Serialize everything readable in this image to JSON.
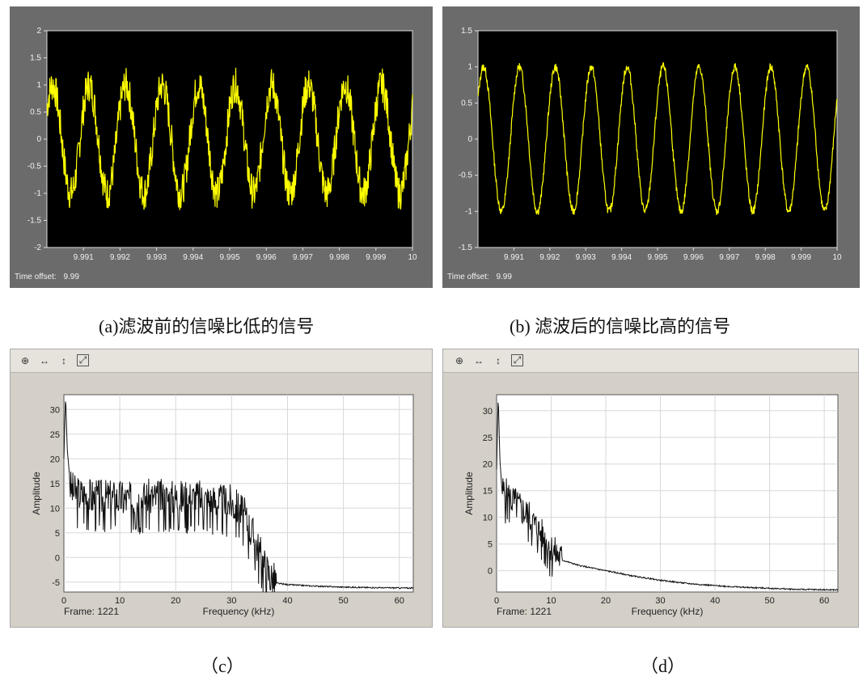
{
  "captions": {
    "a": "(a)滤波前的信噪比低的信号",
    "b": "(b)  滤波后的信噪比高的信号",
    "c": "（c）",
    "d": "（d）"
  },
  "toolbar_icons": [
    "zoom-in-icon",
    "zoom-x-icon",
    "zoom-y-icon",
    "fit-view-icon"
  ],
  "chart_data": [
    {
      "type": "line",
      "id": "a",
      "title": "",
      "xlabel": "",
      "ylabel": "",
      "time_offset_label": "Time offset:",
      "time_offset_value": "9.99",
      "xlim": [
        9.99,
        10.0
      ],
      "ylim": [
        -2,
        2
      ],
      "xticks": [
        9.991,
        9.992,
        9.993,
        9.994,
        9.995,
        9.996,
        9.997,
        9.998,
        9.999,
        10
      ],
      "xtick_labels": [
        "9.991",
        "9.992",
        "9.993",
        "9.994",
        "9.995",
        "9.996",
        "9.997",
        "9.998",
        "9.999",
        "10"
      ],
      "yticks": [
        -2,
        -1.5,
        -1,
        -0.5,
        0,
        0.5,
        1,
        1.5,
        2
      ],
      "ytick_labels": [
        "-2",
        "-1.5",
        "-1",
        "-0.5",
        "0",
        "0.5",
        "1",
        "1.5",
        "2"
      ],
      "signal": {
        "amplitude": 1.0,
        "cycles": 10,
        "noise": 0.32,
        "color": "#ffff00"
      },
      "background": "#000000",
      "grid": false
    },
    {
      "type": "line",
      "id": "b",
      "title": "",
      "xlabel": "",
      "ylabel": "",
      "time_offset_label": "Time offset:",
      "time_offset_value": "9.99",
      "xlim": [
        9.99,
        10.0
      ],
      "ylim": [
        -1.5,
        1.5
      ],
      "xticks": [
        9.991,
        9.992,
        9.993,
        9.994,
        9.995,
        9.996,
        9.997,
        9.998,
        9.999,
        10
      ],
      "xtick_labels": [
        "9.991",
        "9.992",
        "9.993",
        "9.994",
        "9.995",
        "9.996",
        "9.997",
        "9.998",
        "9.999",
        "10"
      ],
      "yticks": [
        -1.5,
        -1,
        -0.5,
        0,
        0.5,
        1,
        1.5
      ],
      "ytick_labels": [
        "-1.5",
        "-1",
        "-0.5",
        "0",
        "0.5",
        "1",
        "1.5"
      ],
      "signal": {
        "amplitude": 1.0,
        "cycles": 10,
        "noise": 0.06,
        "color": "#ffff00"
      },
      "background": "#000000",
      "grid": false
    },
    {
      "type": "line",
      "id": "c",
      "title": "",
      "xlabel": "Frequency (kHz)",
      "ylabel": "Amplitude",
      "frame_label": "Frame: 1221",
      "xlim": [
        0,
        62.5
      ],
      "ylim": [
        -7,
        33
      ],
      "xticks": [
        0,
        10,
        20,
        30,
        40,
        50,
        60
      ],
      "xtick_labels": [
        "0",
        "10",
        "20",
        "30",
        "40",
        "50",
        "60"
      ],
      "yticks": [
        -5,
        0,
        5,
        10,
        15,
        20,
        25,
        30
      ],
      "ytick_labels": [
        "-5",
        "0",
        "5",
        "10",
        "15",
        "20",
        "25",
        "30"
      ],
      "grid": true,
      "series": [
        {
          "x": [
            0,
            0.3,
            0.6,
            1.2,
            2,
            4,
            6,
            8,
            10,
            12,
            14,
            16,
            18,
            20,
            22,
            24,
            26,
            28,
            30,
            32,
            34,
            35,
            36,
            37,
            38,
            40,
            45,
            50,
            55,
            62.5
          ],
          "y": [
            20,
            33,
            22,
            14,
            13,
            12.5,
            12,
            12,
            12,
            11.5,
            12,
            12,
            12,
            12,
            12,
            12,
            11.5,
            11,
            11,
            9,
            4,
            1,
            -2,
            -4,
            -5.2,
            -5.5,
            -5.8,
            -6,
            -6.1,
            -6.2
          ]
        }
      ],
      "noise_band": {
        "x_start": 1,
        "x_end": 38,
        "spread": 5
      }
    },
    {
      "type": "line",
      "id": "d",
      "title": "",
      "xlabel": "Frequency (kHz)",
      "ylabel": "Amplitude",
      "frame_label": "Frame: 1221",
      "xlim": [
        0,
        62.5
      ],
      "ylim": [
        -4,
        33
      ],
      "xticks": [
        0,
        10,
        20,
        30,
        40,
        50,
        60
      ],
      "xtick_labels": [
        "0",
        "10",
        "20",
        "30",
        "40",
        "50",
        "60"
      ],
      "yticks": [
        0,
        5,
        10,
        15,
        20,
        25,
        30
      ],
      "ytick_labels": [
        "0",
        "5",
        "10",
        "15",
        "20",
        "25",
        "30"
      ],
      "grid": true,
      "series": [
        {
          "x": [
            0,
            0.3,
            0.6,
            1,
            2,
            4,
            6,
            8,
            10,
            12,
            15,
            20,
            25,
            30,
            35,
            40,
            45,
            50,
            55,
            62.5
          ],
          "y": [
            19,
            33,
            21,
            15,
            14,
            12,
            10,
            7,
            4,
            2,
            1,
            0,
            -1,
            -1.8,
            -2.4,
            -2.8,
            -3.1,
            -3.3,
            -3.5,
            -3.6
          ]
        }
      ],
      "noise_band": {
        "x_start": 1,
        "x_end": 12,
        "spread": 4
      }
    }
  ]
}
